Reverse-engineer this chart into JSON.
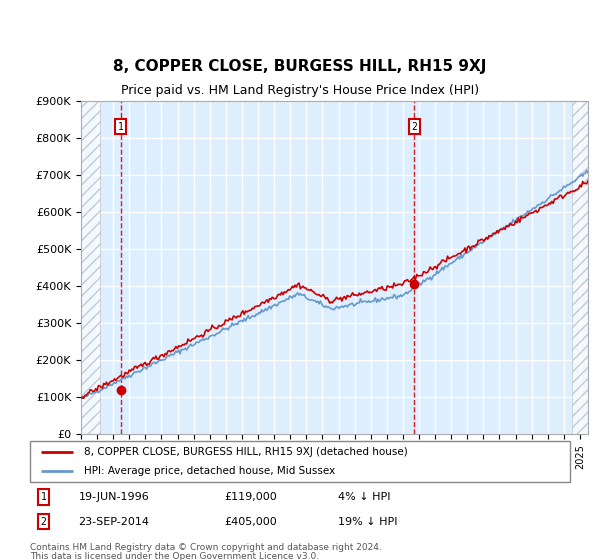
{
  "title": "8, COPPER CLOSE, BURGESS HILL, RH15 9XJ",
  "subtitle": "Price paid vs. HM Land Registry's House Price Index (HPI)",
  "title_fontsize": 11,
  "subtitle_fontsize": 9,
  "ylim": [
    0,
    900000
  ],
  "yticks": [
    0,
    100000,
    200000,
    300000,
    400000,
    500000,
    600000,
    700000,
    800000,
    900000
  ],
  "ytick_labels": [
    "£0",
    "£100K",
    "£200K",
    "£300K",
    "£400K",
    "£500K",
    "£600K",
    "£700K",
    "£800K",
    "£900K"
  ],
  "xlim_start": 1994.0,
  "xlim_end": 2025.5,
  "purchase1_x": 1996.46,
  "purchase1_y": 119000,
  "purchase1_label": "19-JUN-1996",
  "purchase1_price": "£119,000",
  "purchase1_hpi": "4% ↓ HPI",
  "purchase2_x": 2014.72,
  "purchase2_y": 405000,
  "purchase2_label": "23-SEP-2014",
  "purchase2_price": "£405,000",
  "purchase2_hpi": "19% ↓ HPI",
  "legend_line1": "8, COPPER CLOSE, BURGESS HILL, RH15 9XJ (detached house)",
  "legend_line2": "HPI: Average price, detached house, Mid Sussex",
  "footer1": "Contains HM Land Registry data © Crown copyright and database right 2024.",
  "footer2": "This data is licensed under the Open Government Licence v3.0.",
  "line_color_red": "#cc0000",
  "line_color_blue": "#6699cc",
  "bg_plot": "#ddeeff",
  "grid_color": "#ffffff",
  "box_color_red": "#cc0000",
  "hatch_left_end": 1995.2,
  "hatch_right_start": 2024.5
}
